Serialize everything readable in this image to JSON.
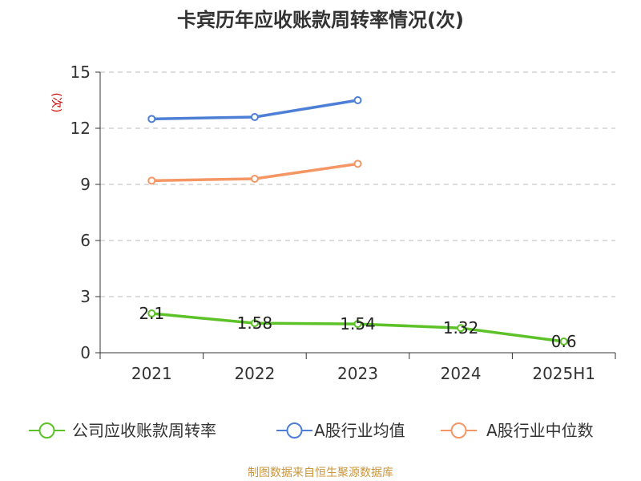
{
  "chart_data": {
    "type": "line",
    "title": "卡宾历年应收账款周转率情况(次)",
    "unit": "(次)",
    "categories": [
      "2021",
      "2022",
      "2023",
      "2024",
      "2025H1"
    ],
    "ylim": [
      0,
      15
    ],
    "yticks": [
      "0",
      "3",
      "6",
      "9",
      "12",
      "15"
    ],
    "grid": true,
    "legend_position": "bottom",
    "series": [
      {
        "name": "公司应收账款周转率",
        "color": "#5cc227",
        "values": [
          2.1,
          1.58,
          1.54,
          1.32,
          0.6
        ],
        "labels": [
          "2.1",
          "1.58",
          "1.54",
          "1.32",
          "0.6"
        ]
      },
      {
        "name": "A股行业均值",
        "color": "#4d7fd6",
        "values": [
          12.5,
          12.6,
          13.5,
          null,
          null
        ]
      },
      {
        "name": "A股行业中位数",
        "color": "#f59665",
        "values": [
          9.2,
          9.3,
          10.1,
          null,
          null
        ]
      }
    ]
  },
  "source": "制图数据来自恒生聚源数据库"
}
